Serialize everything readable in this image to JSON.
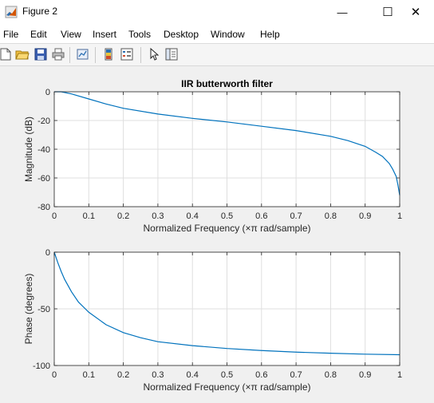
{
  "window": {
    "title": "Figure 2",
    "controls": {
      "minimize": "—",
      "maximize": "☐",
      "close": "✕"
    }
  },
  "menu": {
    "items": [
      "File",
      "Edit",
      "View",
      "Insert",
      "Tools",
      "Desktop",
      "Window",
      "Help"
    ]
  },
  "toolbar": {
    "icons": [
      "new-figure-icon",
      "open-file-icon",
      "save-icon",
      "print-icon",
      "link-plot-icon",
      "insert-colorbar-icon",
      "insert-legend-icon",
      "edit-plot-icon",
      "property-inspector-icon"
    ]
  },
  "colors": {
    "line": "#0072bd",
    "grid": "#dfdfdf",
    "axes_bg": "#ffffff",
    "figure_bg": "#f0f0f0"
  },
  "chart_data": [
    {
      "type": "line",
      "title": "IIR butterworth filter",
      "xlabel": "Normalized Frequency  (×π rad/sample)",
      "ylabel": "Magnitude (dB)",
      "xlim": [
        0,
        1
      ],
      "ylim": [
        -80,
        0
      ],
      "xticks": [
        "0",
        "0.1",
        "0.2",
        "0.3",
        "0.4",
        "0.5",
        "0.6",
        "0.7",
        "0.8",
        "0.9",
        "1"
      ],
      "yticks": [
        "0",
        "-20",
        "-40",
        "-60",
        "-80"
      ],
      "grid": true,
      "x": [
        0,
        0.02,
        0.05,
        0.1,
        0.15,
        0.2,
        0.3,
        0.4,
        0.5,
        0.6,
        0.7,
        0.8,
        0.85,
        0.9,
        0.93,
        0.95,
        0.97,
        0.98,
        0.99,
        0.995,
        1.0
      ],
      "y": [
        0,
        0,
        -1.5,
        -5,
        -8.5,
        -11.5,
        -15.5,
        -18.5,
        -21,
        -24,
        -27,
        -31,
        -34,
        -38,
        -42,
        -45,
        -50,
        -54,
        -59,
        -65,
        -72
      ]
    },
    {
      "type": "line",
      "title": "",
      "xlabel": "Normalized Frequency  (×π rad/sample)",
      "ylabel": "Phase (degrees)",
      "xlim": [
        0,
        1
      ],
      "ylim": [
        -100,
        0
      ],
      "xticks": [
        "0",
        "0.1",
        "0.2",
        "0.3",
        "0.4",
        "0.5",
        "0.6",
        "0.7",
        "0.8",
        "0.9",
        "1"
      ],
      "yticks": [
        "0",
        "-50",
        "-100"
      ],
      "grid": true,
      "x": [
        0,
        0.01,
        0.02,
        0.03,
        0.05,
        0.07,
        0.1,
        0.15,
        0.2,
        0.25,
        0.3,
        0.4,
        0.5,
        0.6,
        0.7,
        0.8,
        0.9,
        1.0
      ],
      "y": [
        0,
        -9,
        -17,
        -24,
        -35,
        -44,
        -53,
        -64,
        -71,
        -75.5,
        -79,
        -82.5,
        -85,
        -86.8,
        -88.2,
        -89.2,
        -90,
        -90.5
      ]
    }
  ]
}
